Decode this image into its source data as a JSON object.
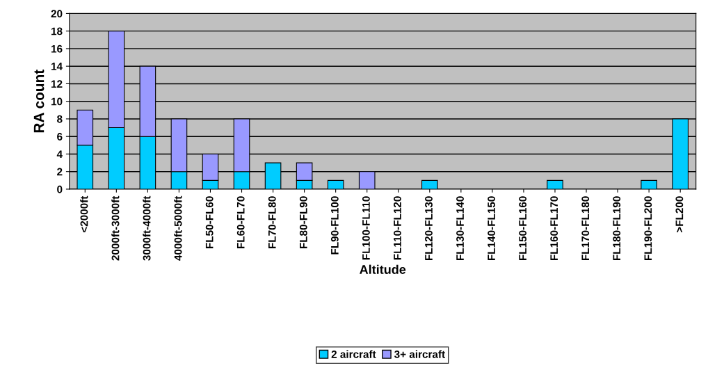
{
  "chart_data": {
    "type": "bar",
    "stacked": true,
    "xlabel": "Altitude",
    "ylabel": "RA count",
    "categories": [
      "<2000ft",
      "2000ft-3000ft",
      "3000ft-4000ft",
      "4000ft-5000ft",
      "FL50-FL60",
      "FL60-FL70",
      "FL70-FL80",
      "FL80-FL90",
      "FL90-FL100",
      "FL100-FL110",
      "FL110-FL120",
      "FL120-FL130",
      "FL130-FL140",
      "FL140-FL150",
      "FL150-FL160",
      "FL160-FL170",
      "FL170-FL180",
      "FL180-FL190",
      "FL190-FL200",
      ">FL200"
    ],
    "series": [
      {
        "name": "2 aircraft",
        "color": "#00ccff",
        "values": [
          5,
          7,
          6,
          2,
          1,
          2,
          3,
          1,
          1,
          0,
          0,
          1,
          0,
          0,
          0,
          1,
          0,
          0,
          1,
          8
        ]
      },
      {
        "name": "3+ aircraft",
        "color": "#9999ff",
        "values": [
          4,
          11,
          8,
          6,
          3,
          6,
          0,
          2,
          0,
          2,
          0,
          0,
          0,
          0,
          0,
          0,
          0,
          0,
          0,
          0
        ]
      }
    ],
    "ylim": [
      0,
      20
    ],
    "yticks": [
      0,
      2,
      4,
      6,
      8,
      10,
      12,
      14,
      16,
      18,
      20
    ],
    "grid": "y",
    "legend": "bottom"
  }
}
